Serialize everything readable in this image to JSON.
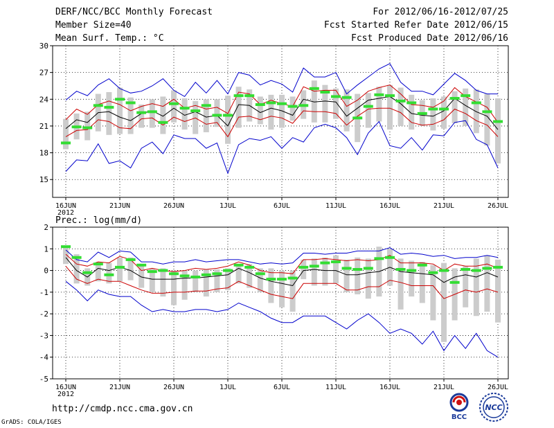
{
  "header": {
    "title": "DERF/NCC/BCC Monthly Forecast",
    "member_size": "Member Size=40",
    "variable1": "Mean Surf. Temp.: °C",
    "period": "For 2012/06/16-2012/07/25",
    "started": "Fcst Started Refer Date 2012/06/15",
    "produced": "Fcst Produced Date 2012/06/16"
  },
  "footer": {
    "url": "http://cmdp.ncc.cma.gov.cn",
    "grads": "GrADS: COLA/IGES",
    "logo_bcc": "BCC",
    "logo_ncc": "NCC"
  },
  "colors": {
    "envelope": "#0000cc",
    "spread": "#cc0000",
    "mean": "#000000",
    "median": "#33dd33",
    "box": "#cccccc"
  },
  "chart_data": [
    {
      "type": "line",
      "title": "Mean Surf. Temp.: °C",
      "ylim": [
        13,
        30
      ],
      "yticks": [
        15,
        18,
        21,
        24,
        27,
        30
      ],
      "xticks": [
        {
          "label": "16JUN",
          "day": 0,
          "sub": "2012"
        },
        {
          "label": "21JUN",
          "day": 5
        },
        {
          "label": "26JUN",
          "day": 10
        },
        {
          "label": "1JUL",
          "day": 15
        },
        {
          "label": "6JUL",
          "day": 20
        },
        {
          "label": "11JUL",
          "day": 25
        },
        {
          "label": "16JUL",
          "day": 30
        },
        {
          "label": "21JUL",
          "day": 35
        },
        {
          "label": "26JUL",
          "day": 40
        }
      ],
      "series": [
        {
          "name": "max",
          "values": [
            15.9,
            17.2,
            17.1,
            19.0,
            16.8,
            17.1,
            16.3,
            18.5,
            19.2,
            17.9,
            20.0,
            19.6,
            19.6,
            18.5,
            19.1,
            15.7,
            18.9,
            19.6,
            19.4,
            19.8,
            18.5,
            19.7,
            19.2,
            20.8,
            21.2,
            20.8,
            19.7,
            17.8,
            20.2,
            21.5,
            18.8,
            18.5,
            19.7,
            18.3,
            20.0,
            19.9,
            21.4,
            21.6,
            19.5,
            18.9,
            16.3
          ]
        },
        {
          "name": "min",
          "values": [
            23.9,
            24.9,
            24.4,
            25.6,
            26.3,
            25.2,
            24.7,
            24.9,
            25.5,
            26.3,
            25.0,
            24.3,
            25.9,
            24.7,
            26.1,
            24.6,
            27.0,
            26.7,
            25.6,
            26.1,
            25.7,
            24.8,
            27.5,
            26.5,
            26.5,
            27.0,
            24.6,
            25.6,
            26.5,
            27.4,
            28.0,
            25.9,
            24.9,
            24.9,
            24.5,
            25.7,
            26.9,
            26.1,
            25.0,
            24.6,
            24.6
          ]
        },
        {
          "name": "upper",
          "values": [
            21.7,
            22.9,
            22.3,
            23.4,
            23.8,
            23.4,
            22.7,
            23.2,
            23.5,
            23.2,
            24.0,
            23.0,
            23.3,
            22.9,
            23.1,
            22.4,
            24.8,
            24.6,
            23.4,
            23.9,
            23.5,
            23.2,
            25.4,
            24.9,
            25.0,
            25.0,
            23.2,
            23.9,
            24.9,
            25.3,
            25.6,
            24.6,
            23.4,
            23.3,
            23.1,
            23.8,
            25.3,
            24.3,
            23.7,
            23.1,
            21.4
          ]
        },
        {
          "name": "lower",
          "values": [
            19.8,
            20.5,
            20.6,
            21.7,
            21.5,
            20.8,
            20.7,
            21.8,
            21.9,
            21.1,
            22.0,
            21.5,
            21.9,
            21.2,
            21.4,
            19.8,
            22.0,
            22.1,
            21.7,
            22.1,
            21.9,
            21.3,
            22.7,
            22.6,
            22.6,
            22.4,
            21.1,
            22.1,
            22.9,
            23.0,
            23.0,
            22.5,
            21.4,
            21.1,
            21.2,
            21.7,
            22.9,
            22.4,
            21.6,
            21.1,
            19.8
          ]
        },
        {
          "name": "mean",
          "values": [
            20.7,
            21.7,
            21.4,
            22.5,
            22.6,
            22.0,
            21.6,
            22.4,
            22.7,
            22.1,
            23.0,
            22.2,
            22.6,
            22.0,
            22.2,
            21.0,
            23.4,
            23.3,
            22.5,
            23.0,
            22.7,
            22.2,
            24.0,
            23.7,
            23.8,
            23.7,
            22.1,
            23.0,
            23.9,
            24.1,
            24.3,
            23.5,
            22.4,
            22.2,
            22.1,
            22.7,
            24.1,
            23.3,
            22.6,
            22.1,
            20.6
          ]
        },
        {
          "name": "median",
          "values": [
            19.1,
            20.9,
            20.8,
            23.3,
            23.1,
            24.0,
            23.6,
            22.5,
            22.6,
            21.4,
            23.5,
            23.0,
            22.7,
            23.3,
            22.2,
            22.2,
            24.4,
            24.4,
            23.4,
            23.6,
            23.5,
            23.2,
            23.3,
            25.2,
            24.8,
            24.3,
            24.2,
            21.9,
            23.2,
            24.5,
            24.4,
            23.8,
            23.6,
            22.4,
            22.9,
            22.9,
            24.1,
            24.4,
            23.6,
            22.6,
            21.5
          ]
        },
        {
          "name": "box_high",
          "values": [
            21.8,
            22.4,
            22.6,
            24.6,
            24.8,
            25.3,
            24.2,
            23.4,
            24.0,
            24.3,
            25.0,
            24.1,
            23.8,
            24.0,
            24.0,
            24.4,
            25.4,
            25.1,
            24.3,
            24.5,
            24.5,
            24.3,
            25.0,
            26.1,
            25.6,
            25.2,
            25.1,
            24.6,
            24.7,
            25.4,
            25.6,
            25.3,
            24.5,
            23.9,
            24.1,
            24.3,
            24.9,
            25.2,
            25.1,
            24.6,
            24.1
          ]
        },
        {
          "name": "box_low",
          "values": [
            18.4,
            19.5,
            19.4,
            20.4,
            20.0,
            20.1,
            20.1,
            20.8,
            20.8,
            20.1,
            21.4,
            20.6,
            20.1,
            20.3,
            20.9,
            19.0,
            20.8,
            21.5,
            21.2,
            20.6,
            20.8,
            21.6,
            21.8,
            21.4,
            21.4,
            21.8,
            20.4,
            19.2,
            20.8,
            21.5,
            20.6,
            21.0,
            20.6,
            21.0,
            20.5,
            20.7,
            21.3,
            21.0,
            20.2,
            18.8,
            16.8
          ]
        }
      ]
    },
    {
      "type": "line",
      "title": "Prec.: log(mm/d)",
      "ylim": [
        -5,
        2
      ],
      "yticks": [
        -5,
        -4,
        -3,
        -2,
        -1,
        0,
        1,
        2
      ],
      "xticks": [
        {
          "label": "16JUN",
          "day": 0,
          "sub": "2012"
        },
        {
          "label": "21JUN",
          "day": 5
        },
        {
          "label": "26JUN",
          "day": 10
        },
        {
          "label": "1JUL",
          "day": 15
        },
        {
          "label": "6JUL",
          "day": 20
        },
        {
          "label": "11JUL",
          "day": 25
        },
        {
          "label": "16JUL",
          "day": 30
        },
        {
          "label": "21JUL",
          "day": 35
        },
        {
          "label": "26JUL",
          "day": 40
        }
      ],
      "series": [
        {
          "name": "max",
          "values": [
            0.95,
            0.5,
            0.4,
            0.85,
            0.6,
            0.9,
            0.85,
            0.4,
            0.4,
            0.3,
            0.4,
            0.4,
            0.5,
            0.4,
            0.45,
            0.5,
            0.5,
            0.4,
            0.3,
            0.35,
            0.3,
            0.35,
            0.8,
            0.8,
            0.75,
            0.8,
            0.8,
            0.9,
            0.9,
            0.9,
            1.05,
            0.75,
            0.8,
            0.75,
            0.65,
            0.7,
            0.55,
            0.6,
            0.6,
            0.7,
            0.6
          ]
        },
        {
          "name": "min",
          "values": [
            -0.5,
            -0.9,
            -1.4,
            -0.9,
            -1.1,
            -1.2,
            -1.2,
            -1.6,
            -1.9,
            -1.8,
            -1.9,
            -1.9,
            -1.8,
            -1.8,
            -1.9,
            -1.8,
            -1.5,
            -1.7,
            -1.9,
            -2.2,
            -2.4,
            -2.4,
            -2.1,
            -2.1,
            -2.1,
            -2.4,
            -2.7,
            -2.3,
            -2.0,
            -2.4,
            -2.9,
            -2.7,
            -2.9,
            -3.4,
            -2.8,
            -3.7,
            -3.0,
            -3.6,
            -2.9,
            -3.7,
            -4.0
          ]
        },
        {
          "name": "upper",
          "values": [
            0.75,
            0.3,
            0.2,
            0.4,
            0.35,
            0.65,
            0.5,
            0.0,
            0.1,
            0.0,
            -0.05,
            0.0,
            0.1,
            0.05,
            0.1,
            0.2,
            0.4,
            0.25,
            0.0,
            -0.1,
            -0.1,
            -0.15,
            0.5,
            0.5,
            0.55,
            0.5,
            0.45,
            0.5,
            0.45,
            0.5,
            0.7,
            0.35,
            0.35,
            0.35,
            0.3,
            0.0,
            0.3,
            0.2,
            0.2,
            0.3,
            0.1
          ]
        },
        {
          "name": "lower",
          "values": [
            0.2,
            -0.4,
            -0.6,
            -0.4,
            -0.5,
            -0.5,
            -0.7,
            -0.9,
            -1.05,
            -1.05,
            -1.0,
            -1.0,
            -0.95,
            -0.95,
            -0.85,
            -0.8,
            -0.5,
            -0.7,
            -0.9,
            -1.1,
            -1.2,
            -1.3,
            -0.6,
            -0.6,
            -0.6,
            -0.6,
            -0.9,
            -0.9,
            -0.75,
            -0.75,
            -0.45,
            -0.55,
            -0.7,
            -0.7,
            -0.7,
            -1.3,
            -1.1,
            -0.9,
            -1.0,
            -0.85,
            -1.0
          ]
        },
        {
          "name": "mean",
          "values": [
            0.6,
            0.0,
            -0.3,
            0.1,
            0.0,
            0.15,
            0.0,
            -0.3,
            -0.4,
            -0.4,
            -0.4,
            -0.35,
            -0.35,
            -0.3,
            -0.25,
            -0.2,
            0.1,
            -0.1,
            -0.35,
            -0.5,
            -0.6,
            -0.7,
            0.0,
            0.05,
            0.0,
            0.0,
            -0.2,
            -0.2,
            -0.1,
            -0.05,
            0.15,
            -0.05,
            -0.1,
            -0.15,
            -0.2,
            -0.55,
            -0.3,
            -0.2,
            -0.3,
            -0.1,
            -0.3
          ]
        },
        {
          "name": "median",
          "values": [
            1.1,
            0.6,
            -0.1,
            0.3,
            -0.2,
            0.15,
            0.5,
            0.25,
            -0.05,
            0.0,
            -0.15,
            -0.25,
            -0.3,
            -0.2,
            -0.15,
            0.0,
            0.25,
            0.15,
            -0.15,
            -0.4,
            -0.4,
            -0.35,
            0.15,
            0.2,
            0.35,
            0.4,
            0.1,
            0.05,
            0.1,
            0.55,
            0.6,
            0.05,
            0.0,
            0.25,
            -0.1,
            0.0,
            -0.55,
            0.05,
            0.0,
            0.1,
            0.15
          ]
        },
        {
          "name": "box_high",
          "values": [
            1.15,
            0.75,
            0.1,
            0.4,
            0.35,
            0.6,
            0.6,
            0.2,
            0.1,
            0.1,
            0.0,
            0.0,
            0.0,
            0.05,
            0.05,
            0.1,
            0.3,
            0.3,
            0.1,
            0.1,
            0.0,
            0.0,
            0.5,
            0.55,
            0.6,
            0.7,
            0.5,
            0.6,
            0.55,
            1.1,
            1.0,
            0.55,
            0.45,
            0.4,
            0.25,
            0.35,
            0.1,
            0.2,
            0.55,
            0.7,
            0.5
          ]
        },
        {
          "name": "box_low",
          "values": [
            0.3,
            -0.6,
            -0.7,
            -0.5,
            -0.6,
            -0.5,
            -0.45,
            -0.8,
            -1.0,
            -1.2,
            -1.6,
            -1.35,
            -1.0,
            -1.2,
            -1.0,
            -0.9,
            -0.6,
            -0.8,
            -1.0,
            -1.5,
            -1.7,
            -1.9,
            -0.4,
            -0.7,
            -0.7,
            -0.6,
            -1.0,
            -1.1,
            -1.3,
            -1.2,
            -0.7,
            -1.8,
            -1.2,
            -1.5,
            -2.3,
            -3.3,
            -2.3,
            -1.7,
            -2.1,
            -1.9,
            -2.4
          ]
        }
      ]
    }
  ]
}
